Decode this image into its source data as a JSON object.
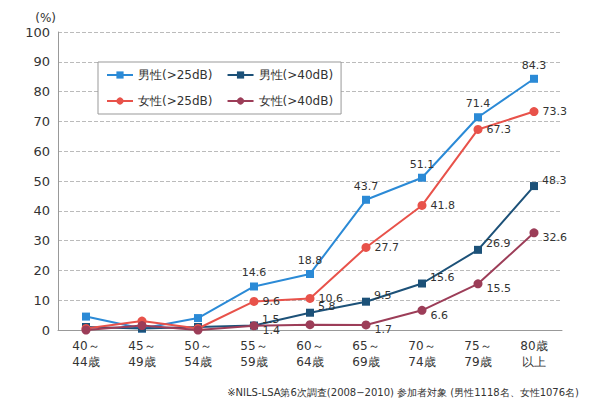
{
  "chart_data": {
    "type": "line",
    "y_label": "(%)",
    "annotations": [
      "※NILS-LSA第6次調査(2008−2010) 参加者対象 (男性1118名、女性1076名)"
    ],
    "categories": [
      "40～\n44歳",
      "45～\n49歳",
      "50～\n54歳",
      "55～\n59歳",
      "60～\n64歳",
      "65～\n69歳",
      "70～\n74歳",
      "75～\n79歳",
      "80歳\n以上"
    ],
    "series": [
      {
        "name": "男性(>25dB)",
        "color": "#2b8ad6",
        "marker": "square",
        "values": [
          4.5,
          0.5,
          4.0,
          14.6,
          18.8,
          43.7,
          51.1,
          71.4,
          84.3
        ],
        "value_labels": [
          null,
          null,
          null,
          "14.6",
          "18.8",
          "43.7",
          "51.1",
          "71.4",
          "84.3"
        ]
      },
      {
        "name": "男性(>40dB)",
        "color": "#1c5178",
        "marker": "square",
        "values": [
          1.0,
          0.5,
          1.0,
          1.5,
          5.8,
          9.5,
          15.6,
          26.9,
          48.3
        ],
        "value_labels": [
          null,
          null,
          null,
          "1.5",
          "5.8",
          "9.5",
          "15.6",
          "26.9",
          "48.3"
        ]
      },
      {
        "name": "女性(>25dB)",
        "color": "#e8524a",
        "marker": "circle",
        "values": [
          0.5,
          3.0,
          0.5,
          9.6,
          10.6,
          27.7,
          41.8,
          67.3,
          73.3
        ],
        "value_labels": [
          null,
          null,
          null,
          "9.6",
          "10.6",
          "27.7",
          "41.8",
          "67.3",
          "73.3"
        ]
      },
      {
        "name": "女性(>40dB)",
        "color": "#9c3d58",
        "marker": "circle",
        "values": [
          0.0,
          1.5,
          0.0,
          1.4,
          1.8,
          1.7,
          6.6,
          15.5,
          32.6
        ],
        "value_labels": [
          null,
          null,
          null,
          "1.4",
          null,
          "1.7",
          "6.6",
          "15.5",
          "32.6"
        ]
      }
    ],
    "ylim": [
      0,
      100
    ],
    "yticks": [
      0,
      10,
      20,
      30,
      40,
      50,
      60,
      70,
      80,
      90,
      100
    ],
    "grid": true,
    "legend": "upper left",
    "data_labels": true
  }
}
